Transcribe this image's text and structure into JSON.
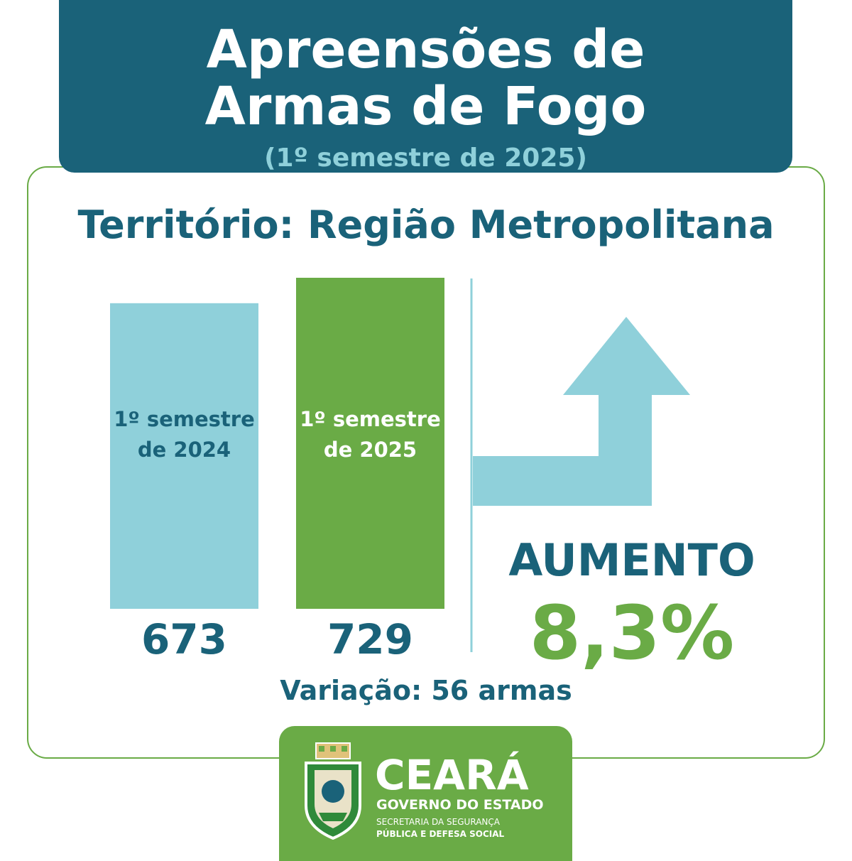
{
  "header": {
    "title_line1": "Apreensões de",
    "title_line2": "Armas de Fogo",
    "subtitle": "(1º semestre de 2025)"
  },
  "territory": "Território: Região Metropolitana",
  "chart_data": {
    "type": "bar",
    "categories": [
      "1º semestre de 2024",
      "1º semestre de 2025"
    ],
    "category_lines": [
      [
        "1º semestre",
        "de 2024"
      ],
      [
        "1º semestre",
        "de 2025"
      ]
    ],
    "values": [
      673,
      729
    ],
    "value_labels": [
      "673",
      "729"
    ],
    "colors": [
      "#8fd0da",
      "#6aab46"
    ],
    "label_colors": [
      "#1a6279",
      "#ffffff"
    ],
    "ylim": [
      0,
      729
    ]
  },
  "trend": {
    "label": "AUMENTO",
    "percent": "8,3%",
    "arrow_color": "#8fd0da"
  },
  "variation": "Variação: 56 armas",
  "logo": {
    "name": "CEARÁ",
    "subtitle": "GOVERNO DO ESTADO",
    "secretariat_line1": "SECRETARIA DA SEGURANÇA",
    "secretariat_line2": "PÚBLICA E DEFESA SOCIAL"
  },
  "colors": {
    "primary": "#1a6279",
    "accent_light": "#8fd0da",
    "accent_green": "#6aab46"
  }
}
